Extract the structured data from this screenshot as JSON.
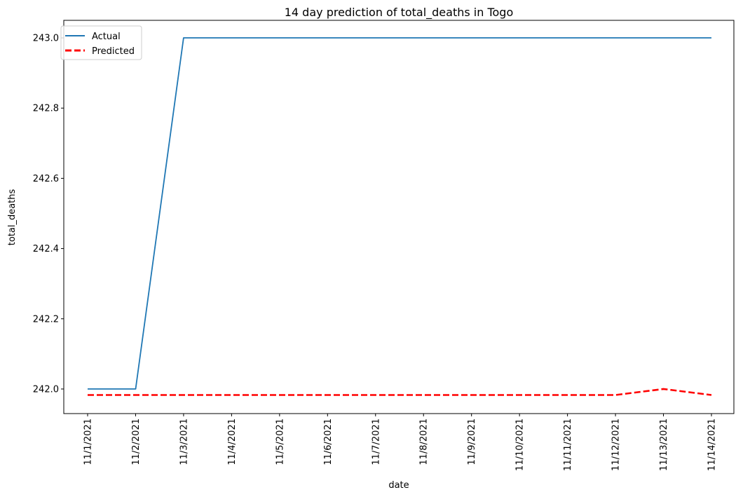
{
  "chart_data": {
    "type": "line",
    "title": "14 day prediction of total_deaths in Togo",
    "xlabel": "date",
    "ylabel": "total_deaths",
    "categories": [
      "11/1/2021",
      "11/2/2021",
      "11/3/2021",
      "11/4/2021",
      "11/5/2021",
      "11/6/2021",
      "11/7/2021",
      "11/8/2021",
      "11/9/2021",
      "11/10/2021",
      "11/11/2021",
      "11/12/2021",
      "11/13/2021",
      "11/14/2021"
    ],
    "yticks": [
      242.0,
      242.2,
      242.4,
      242.6,
      242.8,
      243.0
    ],
    "ytick_labels": [
      "242.0",
      "242.2",
      "242.4",
      "242.6",
      "242.8",
      "243.0"
    ],
    "ylim": [
      241.93,
      243.05
    ],
    "grid": false,
    "legend_position": "top-left",
    "series": [
      {
        "name": "Actual",
        "style": "solid",
        "color": "#1f77b4",
        "values": [
          242.0,
          242.0,
          243.0,
          243.0,
          243.0,
          243.0,
          243.0,
          243.0,
          243.0,
          243.0,
          243.0,
          243.0,
          243.0,
          243.0
        ]
      },
      {
        "name": "Predicted",
        "style": "dashed",
        "color": "#ff0000",
        "values": [
          241.983,
          241.983,
          241.983,
          241.983,
          241.983,
          241.983,
          241.983,
          241.983,
          241.983,
          241.983,
          241.983,
          241.983,
          242.0,
          241.983
        ]
      }
    ]
  }
}
